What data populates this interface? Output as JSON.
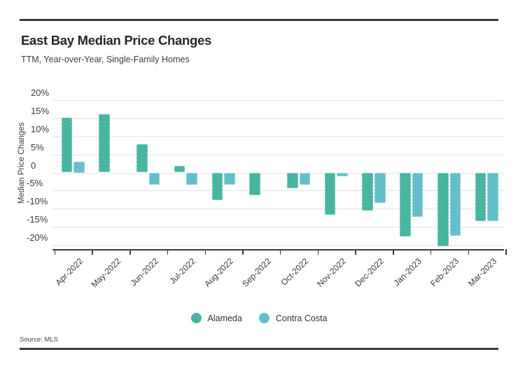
{
  "footer": {
    "source": "Source: MLS"
  },
  "chart_data": {
    "type": "bar",
    "title": "East Bay Median Price Changes",
    "subtitle": "TTM, Year-over-Year, Single-Family Homes",
    "ylabel": "Median Price Changes",
    "categories": [
      "Apr-2022",
      "May-2022",
      "Jun-2022",
      "Jul-2022",
      "Aug-2022",
      "Sep-2022",
      "Oct-2022",
      "Nov-2022",
      "Dec-2022",
      "Jan-2023",
      "Feb-2023",
      "Mar-2023"
    ],
    "series": [
      {
        "name": "Alameda",
        "color": "#48b5a1",
        "values": [
          15.2,
          16.1,
          7.9,
          1.9,
          -7.6,
          -6.3,
          -4.3,
          -11.7,
          -10.5,
          -17.7,
          -20.5,
          -13.4
        ]
      },
      {
        "name": "Contra Costa",
        "color": "#65bfcb",
        "values": [
          3.1,
          null,
          -3.4,
          -3.4,
          -3.4,
          null,
          -3.4,
          -1.1,
          -8.5,
          -12.3,
          -17.5,
          -13.5
        ]
      }
    ],
    "y_ticks": [
      "20%",
      "15%",
      "10%",
      "5%",
      "0",
      "-5%",
      "-10%",
      "-15%",
      "-20%"
    ],
    "y_tick_values": [
      20,
      15,
      10,
      5,
      0,
      -5,
      -10,
      -15,
      -20
    ],
    "ylim": [
      -21.2,
      22.6
    ],
    "grid": true,
    "legend_position": "bottom",
    "axis_color": "#3b3b3b",
    "gridline_color": "#e4e4e4"
  }
}
